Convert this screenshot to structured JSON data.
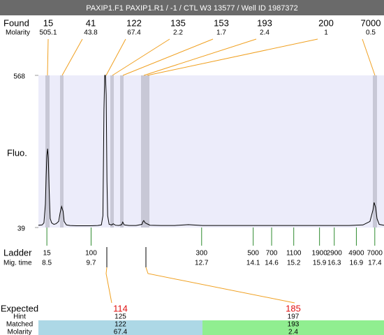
{
  "header": {
    "title": "PAXIP1.F1  PAXIP1.R1 / -1 / CTL W3 13577 / Well ID 1987372"
  },
  "found": {
    "label": "Found",
    "molarity_label": "Molarity",
    "sizes": [
      15,
      41,
      122,
      135,
      153,
      193,
      200,
      7000
    ],
    "molarities": [
      505.1,
      43.8,
      67.4,
      2.2,
      1.7,
      2.4,
      1,
      0.5
    ]
  },
  "chart_data": {
    "type": "line",
    "ylabel": "Fluo.",
    "ylim": [
      39,
      568
    ],
    "yticks": [
      39,
      568
    ],
    "xlim": [
      8.27,
      17.65
    ],
    "plot_color": "#ececfa",
    "series": [
      {
        "color": "#000000",
        "x": [
          8.27,
          8.37,
          8.42,
          8.46,
          8.48,
          8.5,
          8.52,
          8.54,
          8.56,
          8.58,
          8.59,
          8.63,
          8.69,
          8.75,
          8.82,
          8.86,
          8.9,
          8.94,
          8.97,
          9.03,
          9.13,
          9.31,
          9.5,
          9.69,
          9.88,
          9.98,
          10.02,
          10.03,
          10.05,
          10.07,
          10.09,
          10.11,
          10.13,
          10.15,
          10.19,
          10.26,
          10.3,
          10.36,
          10.45,
          10.53,
          10.56,
          10.6,
          10.73,
          10.92,
          11.08,
          11.11,
          11.13,
          11.17,
          11.25,
          11.3,
          11.59,
          11.97,
          12.34,
          12.72,
          13.29,
          13.86,
          14.43,
          15.0,
          15.56,
          16.13,
          16.7,
          17.08,
          17.27,
          17.35,
          17.38,
          17.42,
          17.46,
          17.52,
          17.65
        ],
        "values": [
          47,
          48,
          55,
          120,
          220,
          290,
          313,
          280,
          180,
          100,
          70,
          55,
          50,
          52,
          60,
          90,
          112,
          95,
          60,
          48,
          46,
          45,
          45,
          45,
          46,
          48,
          80,
          200,
          450,
          568,
          568,
          500,
          200,
          80,
          50,
          48,
          52,
          47,
          46,
          49,
          58,
          48,
          46,
          46,
          50,
          60,
          63,
          55,
          50,
          47,
          46,
          46,
          49,
          46,
          46,
          46,
          46,
          46,
          46,
          46,
          46,
          48,
          60,
          100,
          126,
          110,
          70,
          50,
          47
        ]
      }
    ]
  },
  "ladder": {
    "label": "Ladder",
    "time_label": "Mig. time",
    "color": "#2e8b2e",
    "sizes": [
      15,
      100,
      300,
      500,
      700,
      1100,
      1900,
      2900,
      4900,
      7000
    ],
    "times": [
      8.5,
      9.7,
      12.7,
      14.1,
      14.6,
      15.2,
      15.9,
      16.3,
      16.9,
      17.4
    ]
  },
  "expected": {
    "labels": [
      "Expected",
      "Hint",
      "Matched",
      "Molarity"
    ],
    "columns": [
      {
        "expected": 114,
        "hint": 125,
        "matched": 122,
        "molarity": 67.4,
        "color": "#add8e6"
      },
      {
        "expected": 185,
        "hint": 197,
        "matched": 193,
        "molarity": 2.4,
        "color": "#90ee90"
      }
    ]
  }
}
